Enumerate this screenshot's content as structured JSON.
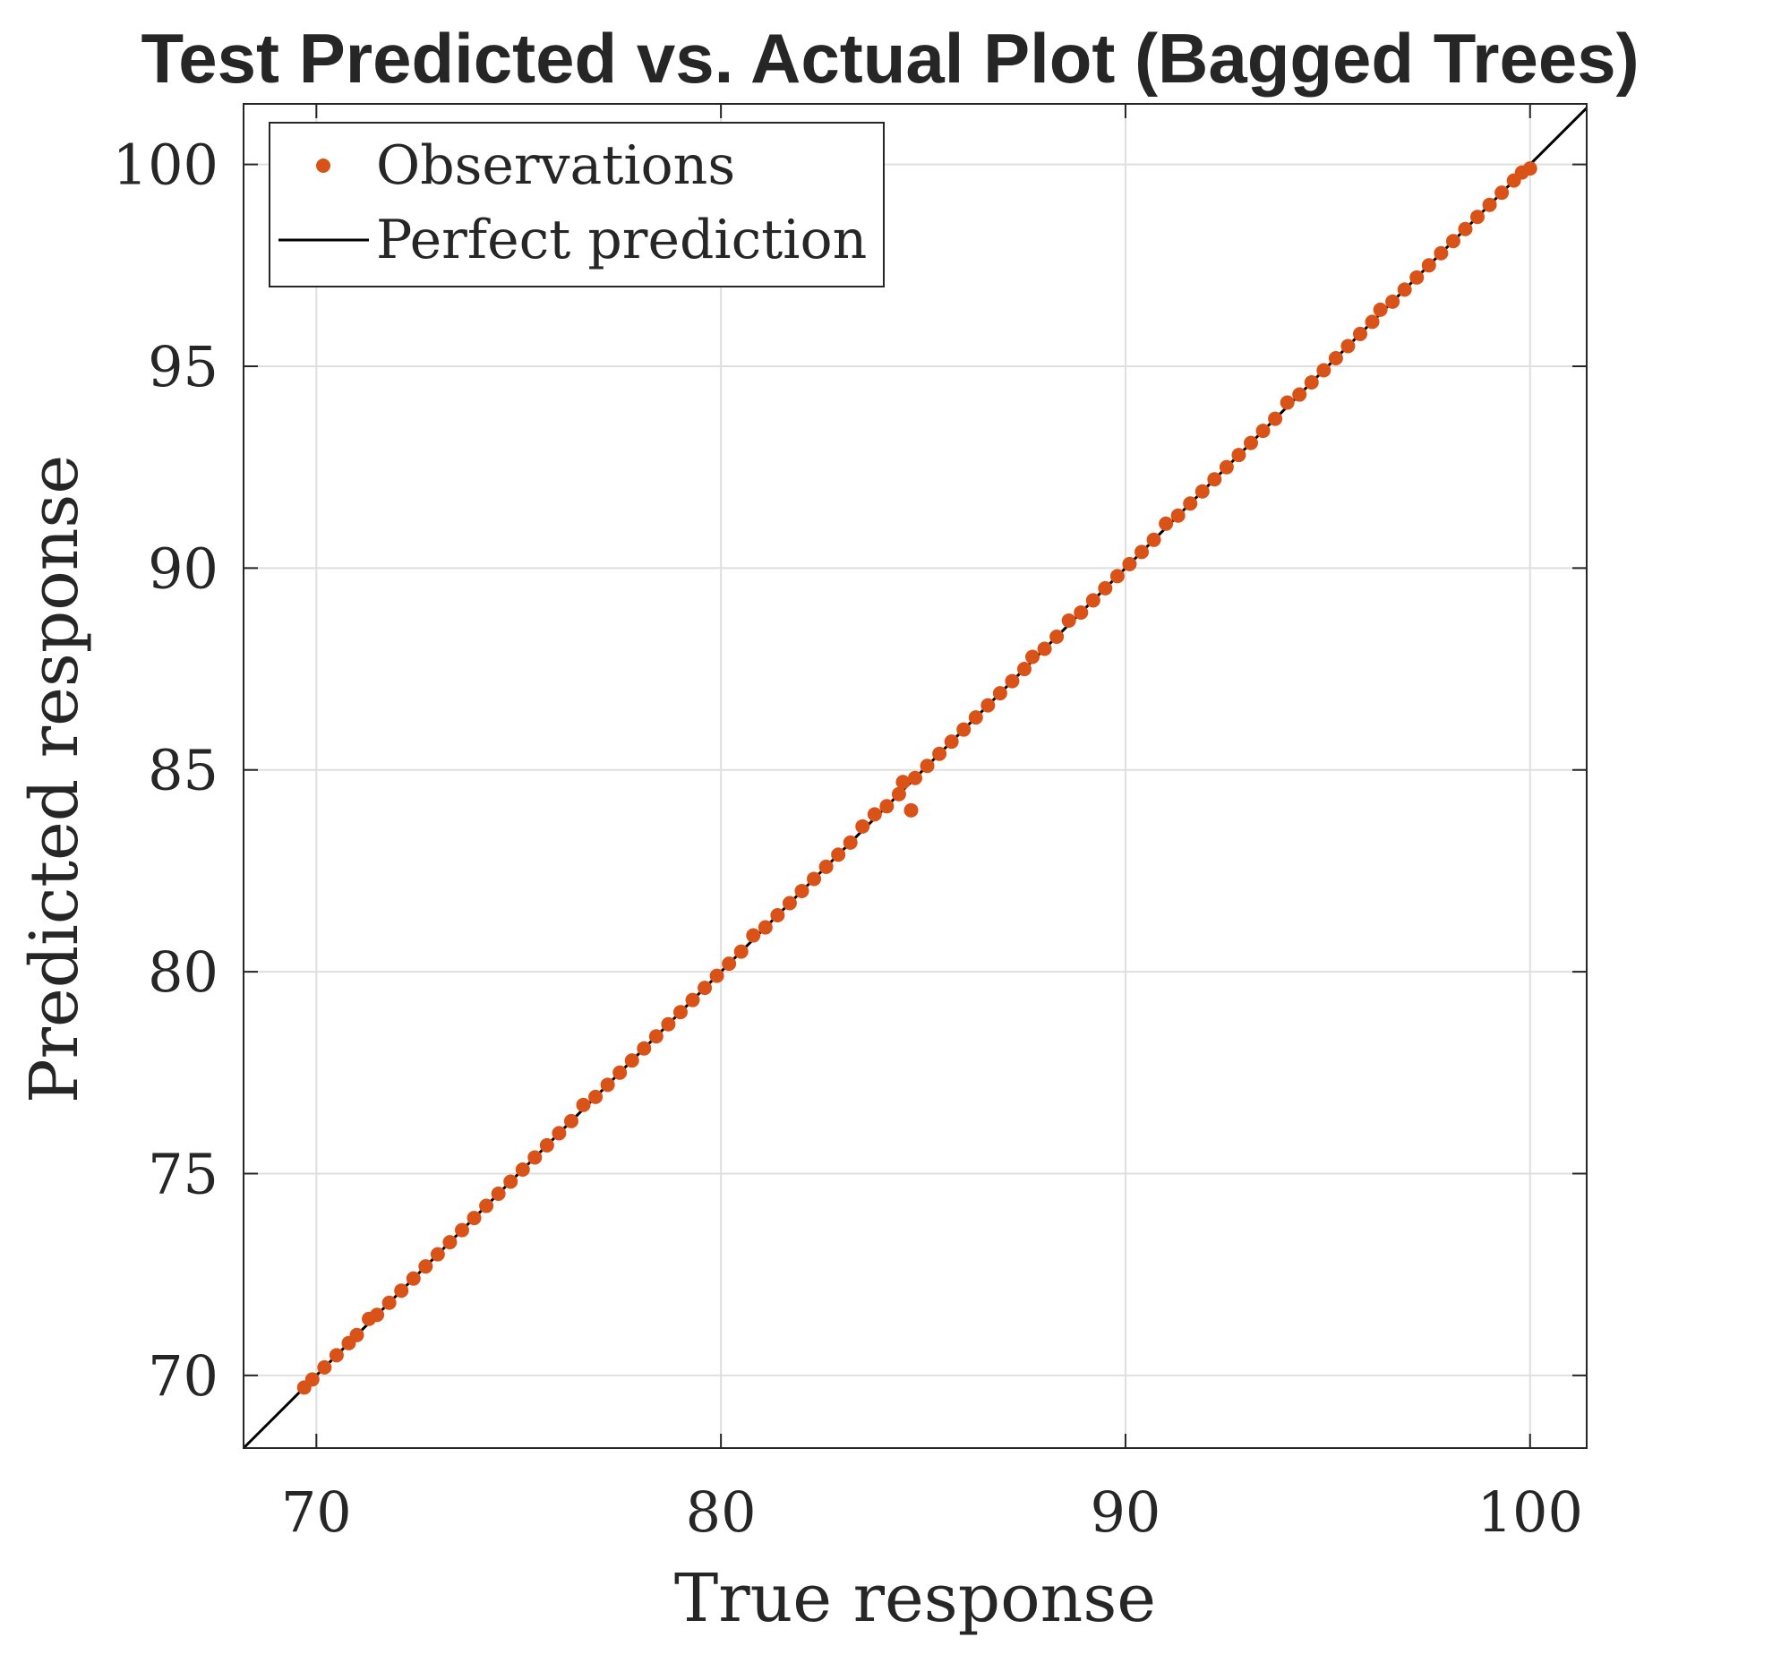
{
  "chart_data": {
    "type": "scatter",
    "title": "Test Predicted vs. Actual Plot (Bagged Trees)",
    "xlabel": "True response",
    "ylabel": "Predicted response",
    "xlim": [
      68.2,
      101.4
    ],
    "ylim": [
      68.2,
      101.5
    ],
    "xticks": [
      70,
      80,
      90,
      100
    ],
    "yticks": [
      70,
      75,
      80,
      85,
      90,
      95,
      100
    ],
    "grid": true,
    "legend_position": "top-left",
    "colors": {
      "observations": "#D95319",
      "perfect_line": "#000000",
      "grid": "#DFDFDF",
      "axes": "#262626"
    },
    "series": [
      {
        "name": "Observations",
        "kind": "scatter",
        "points": [
          [
            69.7,
            69.7
          ],
          [
            69.9,
            69.9
          ],
          [
            70.2,
            70.2
          ],
          [
            70.5,
            70.5
          ],
          [
            70.8,
            70.8
          ],
          [
            71.0,
            71.0
          ],
          [
            71.3,
            71.4
          ],
          [
            71.5,
            71.5
          ],
          [
            71.8,
            71.8
          ],
          [
            72.1,
            72.1
          ],
          [
            72.4,
            72.4
          ],
          [
            72.7,
            72.7
          ],
          [
            73.0,
            73.0
          ],
          [
            73.3,
            73.3
          ],
          [
            73.6,
            73.6
          ],
          [
            73.9,
            73.9
          ],
          [
            74.2,
            74.2
          ],
          [
            74.5,
            74.5
          ],
          [
            74.8,
            74.8
          ],
          [
            75.1,
            75.1
          ],
          [
            75.4,
            75.4
          ],
          [
            75.7,
            75.7
          ],
          [
            76.0,
            76.0
          ],
          [
            76.3,
            76.3
          ],
          [
            76.6,
            76.7
          ],
          [
            76.9,
            76.9
          ],
          [
            77.2,
            77.2
          ],
          [
            77.5,
            77.5
          ],
          [
            77.8,
            77.8
          ],
          [
            78.1,
            78.1
          ],
          [
            78.4,
            78.4
          ],
          [
            78.7,
            78.7
          ],
          [
            79.0,
            79.0
          ],
          [
            79.3,
            79.3
          ],
          [
            79.6,
            79.6
          ],
          [
            79.9,
            79.9
          ],
          [
            80.2,
            80.2
          ],
          [
            80.5,
            80.5
          ],
          [
            80.8,
            80.9
          ],
          [
            81.1,
            81.1
          ],
          [
            81.4,
            81.4
          ],
          [
            81.7,
            81.7
          ],
          [
            82.0,
            82.0
          ],
          [
            82.3,
            82.3
          ],
          [
            82.6,
            82.6
          ],
          [
            82.9,
            82.9
          ],
          [
            83.2,
            83.2
          ],
          [
            83.5,
            83.6
          ],
          [
            83.8,
            83.9
          ],
          [
            84.1,
            84.1
          ],
          [
            84.4,
            84.4
          ],
          [
            84.5,
            84.7
          ],
          [
            84.7,
            84.0
          ],
          [
            84.8,
            84.8
          ],
          [
            85.1,
            85.1
          ],
          [
            85.4,
            85.4
          ],
          [
            85.7,
            85.7
          ],
          [
            86.0,
            86.0
          ],
          [
            86.3,
            86.3
          ],
          [
            86.6,
            86.6
          ],
          [
            86.9,
            86.9
          ],
          [
            87.2,
            87.2
          ],
          [
            87.5,
            87.5
          ],
          [
            87.7,
            87.8
          ],
          [
            88.0,
            88.0
          ],
          [
            88.3,
            88.3
          ],
          [
            88.6,
            88.7
          ],
          [
            88.9,
            88.9
          ],
          [
            89.2,
            89.2
          ],
          [
            89.5,
            89.5
          ],
          [
            89.8,
            89.8
          ],
          [
            90.1,
            90.1
          ],
          [
            90.4,
            90.4
          ],
          [
            90.7,
            90.7
          ],
          [
            91.0,
            91.1
          ],
          [
            91.3,
            91.3
          ],
          [
            91.6,
            91.6
          ],
          [
            91.9,
            91.9
          ],
          [
            92.2,
            92.2
          ],
          [
            92.5,
            92.5
          ],
          [
            92.8,
            92.8
          ],
          [
            93.1,
            93.1
          ],
          [
            93.4,
            93.4
          ],
          [
            93.7,
            93.7
          ],
          [
            94.0,
            94.1
          ],
          [
            94.3,
            94.3
          ],
          [
            94.6,
            94.6
          ],
          [
            94.9,
            94.9
          ],
          [
            95.2,
            95.2
          ],
          [
            95.5,
            95.5
          ],
          [
            95.8,
            95.8
          ],
          [
            96.1,
            96.1
          ],
          [
            96.3,
            96.4
          ],
          [
            96.6,
            96.6
          ],
          [
            96.9,
            96.9
          ],
          [
            97.2,
            97.2
          ],
          [
            97.5,
            97.5
          ],
          [
            97.8,
            97.8
          ],
          [
            98.1,
            98.1
          ],
          [
            98.4,
            98.4
          ],
          [
            98.7,
            98.7
          ],
          [
            99.0,
            99.0
          ],
          [
            99.3,
            99.3
          ],
          [
            99.6,
            99.6
          ],
          [
            99.8,
            99.8
          ],
          [
            100.0,
            99.9
          ]
        ]
      },
      {
        "name": "Perfect prediction",
        "kind": "line",
        "points": [
          [
            68.2,
            68.2
          ],
          [
            101.4,
            101.4
          ]
        ]
      }
    ]
  }
}
